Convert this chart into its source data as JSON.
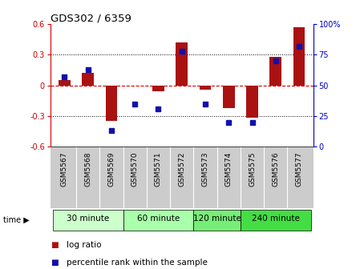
{
  "title": "GDS302 / 6359",
  "samples": [
    "GSM5567",
    "GSM5568",
    "GSM5569",
    "GSM5570",
    "GSM5571",
    "GSM5572",
    "GSM5573",
    "GSM5574",
    "GSM5575",
    "GSM5576",
    "GSM5577"
  ],
  "log_ratio": [
    0.05,
    0.12,
    -0.35,
    0.0,
    -0.06,
    0.42,
    -0.04,
    -0.22,
    -0.32,
    0.28,
    0.57
  ],
  "percentile_rank": [
    57,
    63,
    13,
    35,
    31,
    78,
    35,
    20,
    20,
    70,
    82
  ],
  "groups": [
    {
      "label": "30 minute",
      "start": 0,
      "end": 2
    },
    {
      "label": "60 minute",
      "start": 3,
      "end": 5
    },
    {
      "label": "120 minute",
      "start": 6,
      "end": 7
    },
    {
      "label": "240 minute",
      "start": 8,
      "end": 10
    }
  ],
  "group_colors": [
    "#ccffcc",
    "#aaffaa",
    "#77ee77",
    "#44dd44"
  ],
  "ylim_left": [
    -0.6,
    0.6
  ],
  "ylim_right": [
    0,
    100
  ],
  "bar_color": "#aa1111",
  "dot_color": "#1111aa",
  "hline_color": "#cc0000",
  "bg_color": "#ffffff",
  "sample_bg": "#cccccc",
  "left_tick_color": "#cc0000",
  "right_tick_color": "#0000cc",
  "bar_width": 0.5
}
